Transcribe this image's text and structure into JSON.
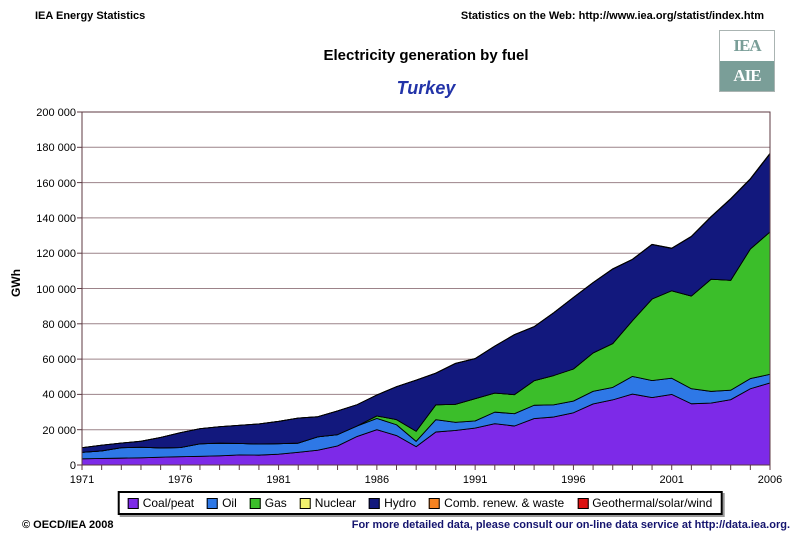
{
  "header": {
    "left": "IEA Energy Statistics",
    "right": "Statistics on the Web: http://www.iea.org/statist/index.htm"
  },
  "logo": {
    "top_text": "IEA",
    "bottom_text": "AIE",
    "color": "#7A9E98"
  },
  "title": "Electricity generation by fuel",
  "subtitle": "Turkey",
  "footer": {
    "left": "© OECD/IEA 2008",
    "right": "For more detailed data, please consult our on-line data service at http://data.iea.org."
  },
  "axis": {
    "y_label": "GWh",
    "y_tick_labels": [
      "0",
      "20 000",
      "40 000",
      "60 000",
      "80 000",
      "100 000",
      "120 000",
      "140 000",
      "160 000",
      "180 000",
      "200 000"
    ],
    "x_labeled_years": [
      1971,
      1976,
      1981,
      1986,
      1991,
      1996,
      2001,
      2006
    ]
  },
  "style_colors": {
    "grid": "#9C8389",
    "axis": "#5C3A42",
    "outline": "#000000",
    "subtitle": "#2233A8",
    "footer_link": "#14146E"
  },
  "chart_data": {
    "type": "area",
    "stacked": true,
    "title": "Electricity generation by fuel",
    "subtitle": "Turkey",
    "ylabel": "GWh",
    "ylim": [
      0,
      200000
    ],
    "y_tick_step": 20000,
    "grid": "horizontal",
    "legend_position": "bottom",
    "x": [
      1971,
      1972,
      1973,
      1974,
      1975,
      1976,
      1977,
      1978,
      1979,
      1980,
      1981,
      1982,
      1983,
      1984,
      1985,
      1986,
      1987,
      1988,
      1989,
      1990,
      1991,
      1992,
      1993,
      1994,
      1995,
      1996,
      1997,
      1998,
      1999,
      2000,
      2001,
      2002,
      2003,
      2004,
      2005,
      2006
    ],
    "series": [
      {
        "name": "Coal/peat",
        "color": "#7D2AE8",
        "values": [
          3500,
          3700,
          3900,
          4100,
          4400,
          4700,
          4900,
          5200,
          5700,
          5600,
          6100,
          7200,
          8400,
          10800,
          16200,
          20000,
          16700,
          10400,
          18700,
          19560,
          20900,
          23400,
          22100,
          26300,
          27200,
          29600,
          34600,
          36900,
          40200,
          38200,
          40000,
          34700,
          35100,
          37000,
          43200,
          46500
        ]
      },
      {
        "name": "Oil",
        "color": "#2E78E6",
        "values": [
          3670,
          4300,
          5900,
          6000,
          5300,
          5200,
          7100,
          7200,
          6500,
          6300,
          6000,
          5200,
          7600,
          6400,
          5900,
          6400,
          6100,
          3000,
          7000,
          4640,
          4074,
          6560,
          6969,
          7553,
          6927,
          6629,
          7154,
          7055,
          9988,
          9626,
          9166,
          8520,
          6615,
          5372,
          5750,
          4865
        ]
      },
      {
        "name": "Gas",
        "color": "#3BBE2A",
        "values": [
          0,
          0,
          0,
          0,
          0,
          0,
          0,
          0,
          0,
          0,
          0,
          0,
          0,
          0,
          59,
          1387,
          2932,
          5724,
          8394,
          10192,
          12589,
          10814,
          10788,
          13883,
          16579,
          18158,
          21726,
          24838,
          31574,
          46217,
          49549,
          52496,
          63536,
          62242,
          73445,
          80691
        ]
      },
      {
        "name": "Nuclear",
        "color": "#F2F26E",
        "values": [
          0,
          0,
          0,
          0,
          0,
          0,
          0,
          0,
          0,
          0,
          0,
          0,
          0,
          0,
          0,
          0,
          0,
          0,
          0,
          0,
          0,
          0,
          0,
          0,
          0,
          0,
          0,
          0,
          0,
          0,
          0,
          0,
          0,
          0,
          0,
          0
        ]
      },
      {
        "name": "Hydro",
        "color": "#12187D",
        "values": [
          2610,
          3204,
          2603,
          3356,
          5904,
          8374,
          8573,
          9335,
          10289,
          11348,
          12616,
          14167,
          11343,
          13426,
          12045,
          11873,
          18618,
          28950,
          17940,
          23148,
          22683,
          26568,
          33951,
          30586,
          35541,
          40475,
          39816,
          42229,
          34678,
          30879,
          24010,
          33684,
          35330,
          46084,
          39561,
          44244
        ]
      },
      {
        "name": "Comb. renew. & waste",
        "color": "#F58220",
        "values": [
          0,
          0,
          0,
          0,
          0,
          0,
          0,
          0,
          0,
          0,
          0,
          0,
          0,
          0,
          0,
          0,
          0,
          0,
          20,
          21,
          23,
          26,
          30,
          34,
          38,
          42,
          47,
          52,
          58,
          65,
          72,
          80,
          90,
          100,
          110,
          122
        ]
      },
      {
        "name": "Geothermal/solar/wind",
        "color": "#DD1111",
        "values": [
          0,
          0,
          0,
          0,
          0,
          0,
          0,
          0,
          0,
          0,
          0,
          0,
          0,
          22,
          6,
          44,
          58,
          68,
          63,
          80,
          81,
          70,
          78,
          79,
          86,
          84,
          83,
          91,
          81,
          76,
          90,
          93,
          105,
          127,
          153,
          221
        ]
      }
    ]
  }
}
